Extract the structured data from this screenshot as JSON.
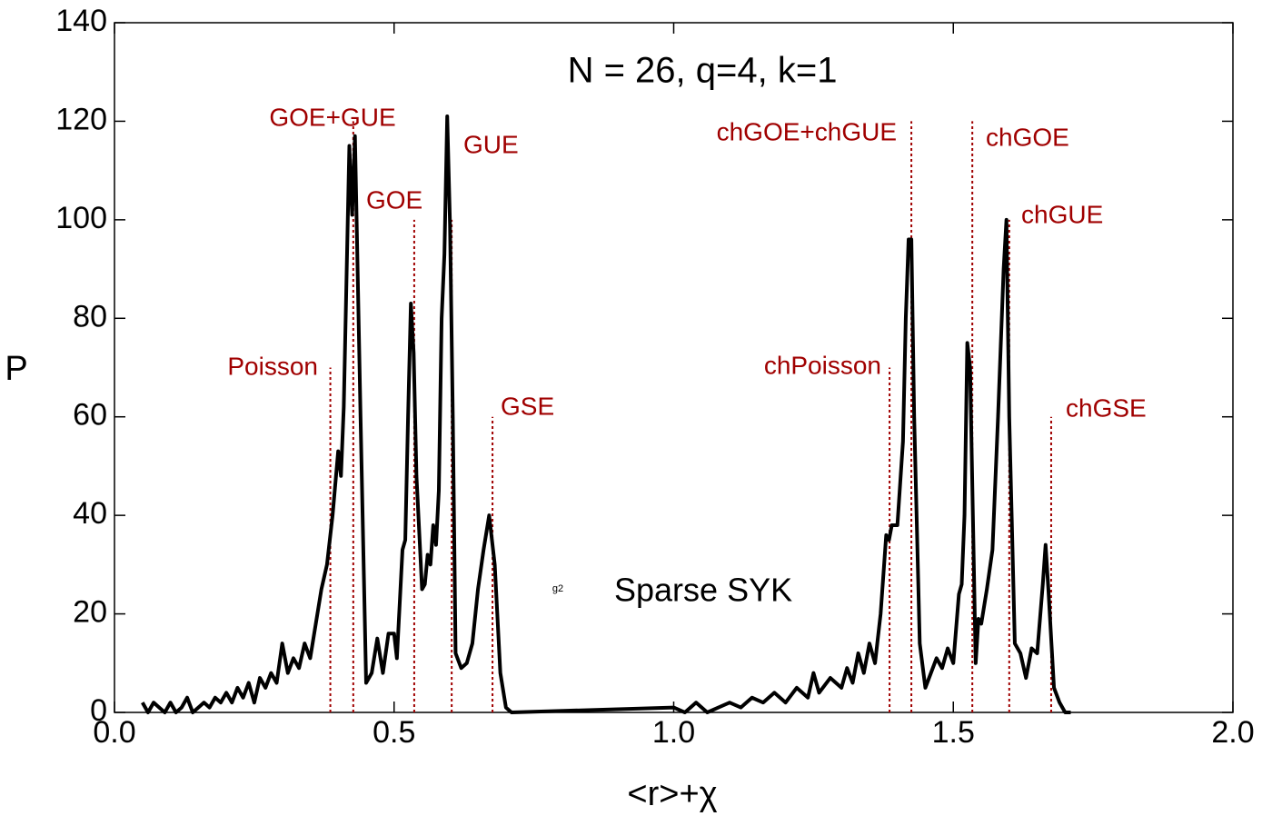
{
  "chart_data": {
    "type": "line",
    "title": "N = 26, q=4, k=1",
    "x_label": "<r>+χ",
    "y_label": "P",
    "xlim": [
      0,
      2
    ],
    "ylim": [
      0,
      140
    ],
    "xticks": [
      {
        "value": 0,
        "label": "0.0"
      },
      0.5,
      {
        "value": 1,
        "label": "1.0"
      },
      1.5,
      {
        "value": 2,
        "label": "2.0"
      }
    ],
    "yticks": [
      0,
      20,
      40,
      60,
      80,
      100,
      120,
      140
    ],
    "legend_symbol": "g2",
    "series": [
      {
        "name": "Sparse SYK",
        "color": "#000000",
        "x": [
          0.05,
          0.06,
          0.07,
          0.08,
          0.09,
          0.1,
          0.11,
          0.12,
          0.13,
          0.14,
          0.15,
          0.16,
          0.17,
          0.18,
          0.19,
          0.2,
          0.21,
          0.22,
          0.23,
          0.24,
          0.25,
          0.26,
          0.27,
          0.28,
          0.29,
          0.3,
          0.31,
          0.32,
          0.33,
          0.34,
          0.35,
          0.36,
          0.37,
          0.38,
          0.39,
          0.4,
          0.405,
          0.41,
          0.42,
          0.425,
          0.43,
          0.44,
          0.45,
          0.46,
          0.47,
          0.48,
          0.49,
          0.5,
          0.505,
          0.515,
          0.52,
          0.525,
          0.53,
          0.535,
          0.54,
          0.55,
          0.555,
          0.56,
          0.565,
          0.57,
          0.575,
          0.58,
          0.585,
          0.59,
          0.595,
          0.6,
          0.605,
          0.61,
          0.62,
          0.63,
          0.64,
          0.65,
          0.66,
          0.67,
          0.68,
          0.69,
          0.7,
          0.71,
          1.0,
          1.02,
          1.04,
          1.06,
          1.08,
          1.1,
          1.12,
          1.14,
          1.16,
          1.18,
          1.2,
          1.22,
          1.24,
          1.25,
          1.26,
          1.28,
          1.3,
          1.31,
          1.32,
          1.33,
          1.34,
          1.35,
          1.36,
          1.37,
          1.38,
          1.385,
          1.39,
          1.4,
          1.41,
          1.415,
          1.42,
          1.425,
          1.43,
          1.44,
          1.45,
          1.46,
          1.47,
          1.48,
          1.49,
          1.5,
          1.51,
          1.515,
          1.52,
          1.525,
          1.53,
          1.535,
          1.54,
          1.545,
          1.55,
          1.56,
          1.57,
          1.58,
          1.59,
          1.595,
          1.6,
          1.61,
          1.62,
          1.63,
          1.64,
          1.65,
          1.66,
          1.665,
          1.67,
          1.68,
          1.69,
          1.7,
          1.71
        ],
        "values": [
          2,
          0,
          2,
          1,
          0,
          2,
          0,
          1,
          3,
          0,
          1,
          2,
          1,
          3,
          2,
          4,
          2,
          5,
          3,
          6,
          2,
          7,
          5,
          8,
          6,
          14,
          8,
          11,
          9,
          14,
          11,
          18,
          25,
          30,
          40,
          53,
          48,
          62,
          115,
          101,
          117,
          60,
          6,
          8,
          15,
          8,
          16,
          16,
          11,
          33,
          35,
          60,
          83,
          73,
          48,
          25,
          26,
          32,
          30,
          38,
          34,
          45,
          80,
          93,
          121,
          99,
          60,
          12,
          9,
          10,
          14,
          25,
          33,
          40,
          30,
          8,
          1,
          0,
          1,
          0,
          2,
          0,
          1,
          2,
          1,
          3,
          2,
          4,
          2,
          5,
          3,
          8,
          4,
          7,
          5,
          9,
          6,
          12,
          8,
          14,
          10,
          20,
          36,
          35,
          38,
          38,
          55,
          80,
          96,
          96,
          60,
          14,
          5,
          8,
          11,
          9,
          13,
          10,
          24,
          26,
          40,
          75,
          70,
          40,
          10,
          19,
          18,
          25,
          33,
          60,
          90,
          100,
          60,
          14,
          12,
          7,
          13,
          12,
          26,
          34,
          25,
          5,
          2,
          0,
          0
        ]
      }
    ],
    "reference_lines": {
      "color": "#a00000",
      "labels": [
        "Poisson",
        "GOE+GUE",
        "GOE",
        "GUE",
        "GSE",
        "chPoisson",
        "chGOE+chGUE",
        "chGOE",
        "chGUE",
        "chGSE"
      ],
      "x": [
        0.386,
        0.427,
        0.536,
        0.603,
        0.676,
        1.386,
        1.425,
        1.534,
        1.6,
        1.675
      ],
      "top": [
        70,
        120,
        100,
        100,
        60,
        70,
        120,
        120,
        100,
        60
      ]
    }
  }
}
